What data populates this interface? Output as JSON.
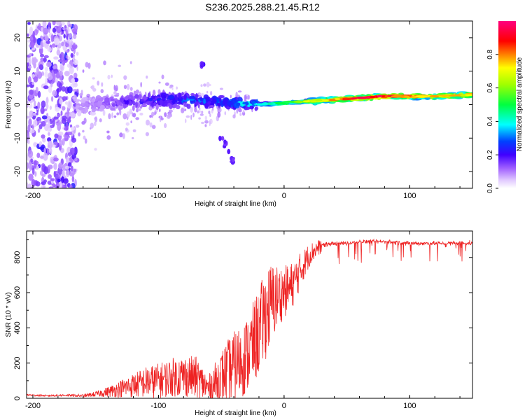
{
  "title": "S236.2025.288.21.45.R12",
  "chart_data": [
    {
      "type": "heatmap",
      "title": "S236.2025.288.21.45.R12",
      "xlabel": "Height of straight line (km)",
      "ylabel": "Frequency (Hz)",
      "xlim": [
        -205,
        150
      ],
      "ylim": [
        -25,
        25
      ],
      "xticks": [
        -200,
        -100,
        0,
        100
      ],
      "yticks": [
        -20,
        -10,
        0,
        10,
        20
      ],
      "colorbar": {
        "label": "Normalized spectral amplitude",
        "range": [
          0,
          1
        ],
        "ticks": [
          "0.0",
          "0.2",
          "0.4",
          "0.6",
          "0.8"
        ],
        "tick_values": [
          0.0,
          0.2,
          0.4,
          0.6,
          0.8
        ],
        "colors": [
          "#ffffff",
          "#c080ff",
          "#6000ff",
          "#0000ff",
          "#00ffff",
          "#00ff00",
          "#ffff00",
          "#ff8000",
          "#ff0000",
          "#ff0080"
        ]
      },
      "trace": {
        "x": [
          -160,
          -140,
          -120,
          -100,
          -80,
          -60,
          -40,
          -20,
          0,
          20,
          40,
          60,
          80,
          100,
          120,
          150
        ],
        "freq": [
          0,
          0.5,
          1,
          1.5,
          1.5,
          1,
          0.5,
          0,
          0.5,
          1,
          1.5,
          2,
          2.5,
          2.5,
          2.5,
          3
        ],
        "amplitude": [
          0.1,
          0.15,
          0.2,
          0.25,
          0.3,
          0.3,
          0.35,
          0.4,
          0.55,
          0.7,
          0.8,
          0.95,
          0.95,
          0.85,
          0.8,
          0.75
        ]
      },
      "features": [
        {
          "x": [
            -205,
            -165
          ],
          "freq": [
            -25,
            25
          ],
          "amplitude": 0.1
        },
        {
          "x": [
            -65,
            -65
          ],
          "freq": [
            12,
            12
          ],
          "amplitude": 0.15
        },
        {
          "x": [
            -50,
            -40
          ],
          "freq": [
            -10,
            -17
          ],
          "amplitude": 0.15
        }
      ]
    },
    {
      "type": "line",
      "xlabel": "Height of straight line (km)",
      "ylabel": "SNR (10 * v/v)",
      "xlim": [
        -205,
        150
      ],
      "ylim": [
        0,
        950
      ],
      "xticks": [
        -200,
        -100,
        0,
        100
      ],
      "yticks": [
        0,
        200,
        400,
        600,
        800
      ],
      "color": "#ee2222",
      "series": [
        {
          "name": "SNR",
          "x": [
            -205,
            -190,
            -175,
            -160,
            -150,
            -140,
            -130,
            -120,
            -110,
            -100,
            -90,
            -80,
            -70,
            -60,
            -50,
            -45,
            -40,
            -30,
            -20,
            -15,
            -10,
            -5,
            0,
            5,
            10,
            15,
            20,
            25,
            30,
            40,
            50,
            60,
            80,
            100,
            120,
            150
          ],
          "y": [
            20,
            15,
            18,
            15,
            25,
            40,
            60,
            80,
            100,
            110,
            130,
            140,
            130,
            60,
            140,
            170,
            200,
            260,
            400,
            500,
            560,
            600,
            620,
            640,
            700,
            760,
            820,
            850,
            870,
            880,
            880,
            890,
            890,
            880,
            880,
            880
          ],
          "noise": [
            6,
            5,
            6,
            8,
            15,
            30,
            50,
            70,
            90,
            100,
            110,
            120,
            120,
            80,
            150,
            180,
            200,
            220,
            250,
            260,
            240,
            180,
            150,
            140,
            120,
            90,
            70,
            50,
            40,
            30,
            30,
            25,
            30,
            30,
            30,
            30
          ]
        }
      ]
    }
  ]
}
